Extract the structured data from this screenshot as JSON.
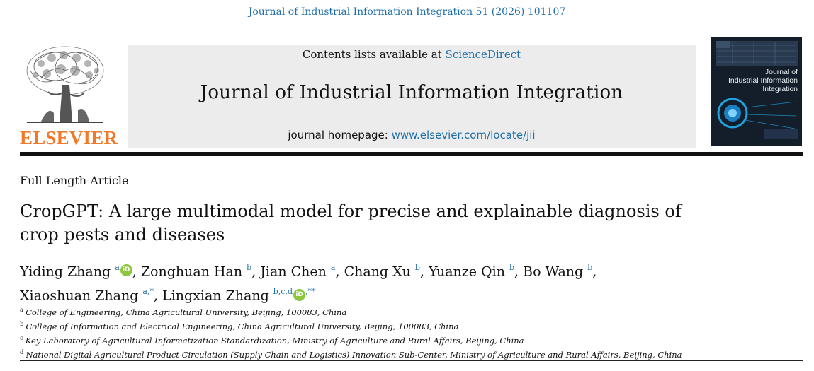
{
  "header": {
    "citation": "Journal of Industrial Information Integration 51 (2026) 101107"
  },
  "publisher": {
    "logo_text": "ELSEVIER"
  },
  "banner": {
    "contents_prefix": "Contents lists available at ",
    "contents_link": "ScienceDirect",
    "journal_title": "Journal of Industrial Information Integration",
    "homepage_prefix": "journal homepage: ",
    "homepage_link": "www.elsevier.com/locate/jii"
  },
  "cover": {
    "title_line1": "Journal of",
    "title_line2": "Industrial Information",
    "title_line3": "Integration"
  },
  "article": {
    "type": "Full Length Article",
    "title_line1": "CropGPT: A large multimodal model for precise and explainable diagnosis of",
    "title_line2": "crop pests and diseases"
  },
  "authors": [
    {
      "name": "Yiding Zhang",
      "sup": "a",
      "orcid": true,
      "sep": ", "
    },
    {
      "name": "Zonghuan Han",
      "sup": "b",
      "orcid": false,
      "sep": ", "
    },
    {
      "name": "Jian Chen",
      "sup": "a",
      "orcid": false,
      "sep": ", "
    },
    {
      "name": "Chang Xu",
      "sup": "b",
      "orcid": false,
      "sep": ", "
    },
    {
      "name": "Yuanze Qin",
      "sup": "b",
      "orcid": false,
      "sep": ", "
    },
    {
      "name": "Bo Wang",
      "sup": "b",
      "orcid": false,
      "sep": ","
    },
    {
      "name": "Xiaoshuan Zhang",
      "sup": "a,*",
      "orcid": false,
      "sep": ", "
    },
    {
      "name": "Lingxian Zhang",
      "sup": "b,c,d",
      "orcid": true,
      "post_sup": ",**",
      "sep": ""
    }
  ],
  "orcid_label": "iD",
  "affiliations": [
    {
      "key": "a",
      "text": "College of Engineering, China Agricultural University, Beijing, 100083, China"
    },
    {
      "key": "b",
      "text": "College of Information and Electrical Engineering, China Agricultural University, Beijing, 100083, China"
    },
    {
      "key": "c",
      "text": "Key Laboratory of Agricultural Informatization Standardization, Ministry of Agriculture and Rural Affairs, Beijing, China"
    },
    {
      "key": "d",
      "text": "National Digital Agricultural Product Circulation (Supply Chain and Logistics) Innovation Sub-Center, Ministry of Agriculture and Rural Affairs, Beijing, China"
    }
  ],
  "colors": {
    "link": "#1f6fa8",
    "elsevier_orange": "#f07a2a",
    "banner_bg": "#ececec",
    "orcid_green": "#8dc63f"
  }
}
